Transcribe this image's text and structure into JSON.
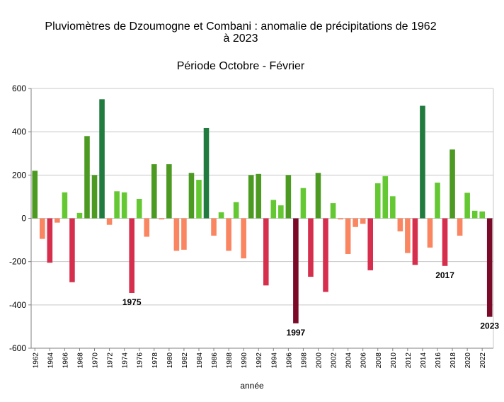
{
  "chart_data": {
    "type": "bar",
    "title_line1": "Pluviomètres de Dzoumogne et Combani : anomalie de précipitations de 1962",
    "title_line2": "à 2023",
    "subtitle": "Période Octobre - Février",
    "xlabel": "année",
    "ylabel": "",
    "ylim": [
      -600,
      600
    ],
    "yticks": [
      "600",
      "400",
      "200",
      "0",
      "-200",
      "-400",
      "-600"
    ],
    "grid": true,
    "legend": "none",
    "categories": [
      "1962",
      "1963",
      "1964",
      "1965",
      "1966",
      "1967",
      "1968",
      "1969",
      "1970",
      "1971",
      "1972",
      "1973",
      "1974",
      "1975",
      "1976",
      "1977",
      "1978",
      "1979",
      "1980",
      "1981",
      "1982",
      "1983",
      "1984",
      "1985",
      "1986",
      "1987",
      "1988",
      "1989",
      "1990",
      "1991",
      "1992",
      "1993",
      "1994",
      "1995",
      "1996",
      "1997",
      "1998",
      "1999",
      "2000",
      "2001",
      "2002",
      "2003",
      "2004",
      "2005",
      "2006",
      "2007",
      "2008",
      "2009",
      "2010",
      "2011",
      "2012",
      "2013",
      "2014",
      "2015",
      "2016",
      "2017",
      "2018",
      "2019",
      "2020",
      "2021",
      "2022",
      "2023"
    ],
    "xtick_labels": [
      "1962",
      "1964",
      "1966",
      "1968",
      "1970",
      "1972",
      "1974",
      "1976",
      "1978",
      "1980",
      "1982",
      "1984",
      "1986",
      "1988",
      "1990",
      "1992",
      "1994",
      "1996",
      "1998",
      "2000",
      "2002",
      "2004",
      "2006",
      "2008",
      "2010",
      "2012",
      "2014",
      "2016",
      "2018",
      "2020",
      "2022"
    ],
    "values": [
      220,
      -95,
      -205,
      -20,
      120,
      -295,
      25,
      380,
      200,
      550,
      -30,
      125,
      120,
      -345,
      90,
      -85,
      250,
      -5,
      250,
      -150,
      -145,
      210,
      178,
      417,
      -80,
      28,
      -150,
      75,
      -185,
      200,
      205,
      -310,
      85,
      60,
      200,
      -485,
      140,
      -270,
      210,
      -340,
      70,
      -5,
      -165,
      -40,
      -25,
      -240,
      162,
      195,
      102,
      -60,
      -160,
      -215,
      520,
      -135,
      165,
      -220,
      318,
      -80,
      118,
      35,
      32,
      -455
    ],
    "annotations": [
      {
        "year": "1975",
        "label": "1975"
      },
      {
        "year": "1997",
        "label": "1997"
      },
      {
        "year": "2017",
        "label": "2017"
      },
      {
        "year": "2023",
        "label": "2023"
      }
    ],
    "colors": {
      "pos_dark": "#217a3e",
      "pos_mid": "#4c9a22",
      "pos_light": "#64c832",
      "neg_dark": "#7a0a28",
      "neg_mid": "#d62f4e",
      "neg_light": "#f98561",
      "grid": "#c8c8c8",
      "axis": "#808080"
    }
  }
}
